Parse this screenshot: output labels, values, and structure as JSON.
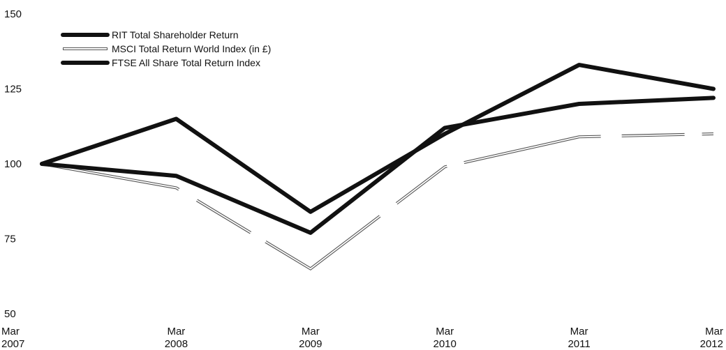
{
  "chart_data": {
    "type": "line",
    "title": "",
    "xlabel": "",
    "ylabel": "",
    "categories": [
      {
        "month": "Mar",
        "year": "2007"
      },
      {
        "month": "Mar",
        "year": "2008"
      },
      {
        "month": "Mar",
        "year": "2009"
      },
      {
        "month": "Mar",
        "year": "2010"
      },
      {
        "month": "Mar",
        "year": "2011"
      },
      {
        "month": "Mar",
        "year": "2012"
      }
    ],
    "ylim": [
      50,
      150
    ],
    "yticks": [
      "50",
      "75",
      "100",
      "125",
      "150"
    ],
    "grid": false,
    "legend_position": "top-left",
    "series": [
      {
        "name": "RIT Total Shareholder Return",
        "values": [
          100,
          115,
          84,
          110,
          133,
          125
        ],
        "color": "#111111",
        "style": "thick"
      },
      {
        "name": "MSCI Total Return World Index (in £)",
        "values": [
          100,
          92,
          65,
          99,
          109,
          110
        ],
        "color": "#555555",
        "style": "thin-double"
      },
      {
        "name": "FTSE All Share Total Return Index",
        "values": [
          100,
          96,
          77,
          112,
          120,
          122
        ],
        "color": "#111111",
        "style": "thick"
      }
    ]
  }
}
